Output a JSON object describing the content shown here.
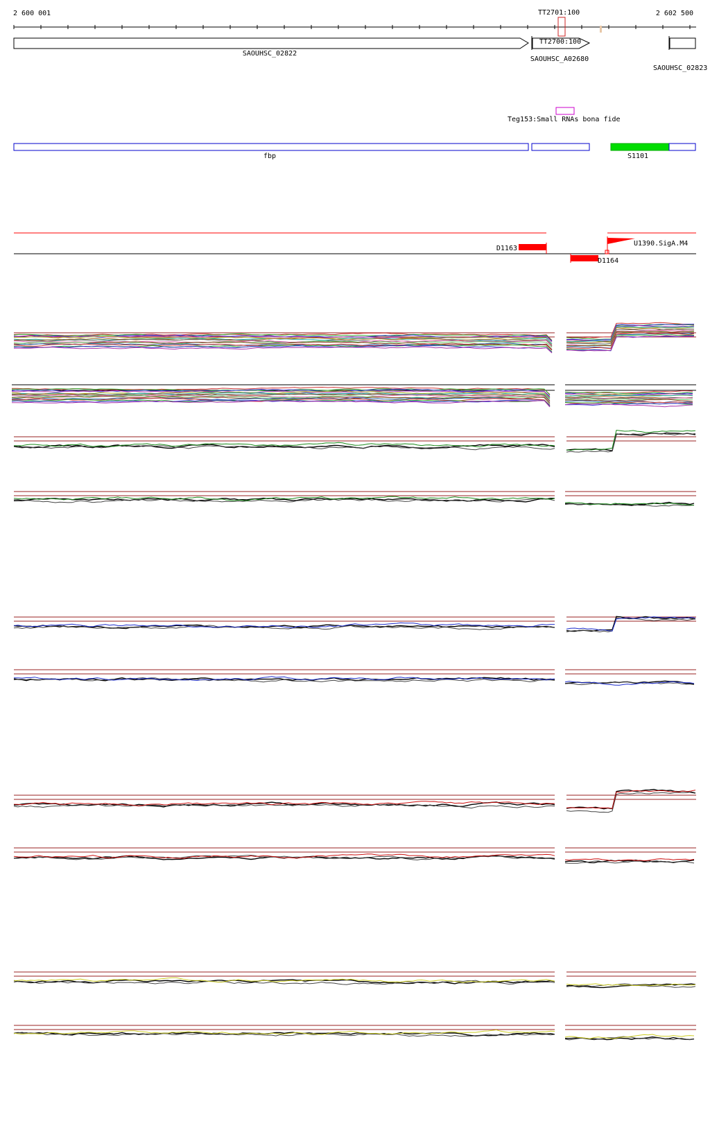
{
  "ruler": {
    "start_label": "2 600 001",
    "end_label": "2 602 500",
    "marker_label": "TT2701:100"
  },
  "genes": {
    "g1": {
      "label": "SAOUHSC_02822"
    },
    "g2": {
      "inner_label": "TT2700:100",
      "label": "SAOUHSC_A02680"
    },
    "g3": {
      "label": "SAOUHSC_02823"
    }
  },
  "srna": {
    "label": "Teg153:Small RNAs bona fide"
  },
  "operons": {
    "fbp": {
      "label": "fbp"
    },
    "s1101": {
      "label": "S1101"
    }
  },
  "promoters": {
    "d1163": {
      "label": "D1163"
    },
    "d1164": {
      "label": "D1164"
    },
    "u1390": {
      "label": "U1390.SigA.M4"
    }
  },
  "colors": {
    "gene_outline": "#000000",
    "operon_outline": "#0000cc",
    "operon_fill_s1101": "#00dd00",
    "promoter": "#ff0000",
    "srna_box": "#cc00cc",
    "threshold": "#992222",
    "track_blue": "#1f2fcc",
    "track_green": "#1a8a1a",
    "track_red": "#cc1111",
    "track_yellow": "#cccc22"
  },
  "tracks": [
    {
      "name": "multi-condition-1",
      "color": "multi"
    },
    {
      "name": "multi-condition-2",
      "color": "multi"
    },
    {
      "name": "green-1",
      "color": "green"
    },
    {
      "name": "green-2",
      "color": "green"
    },
    {
      "name": "blue-1",
      "color": "blue"
    },
    {
      "name": "blue-2",
      "color": "blue"
    },
    {
      "name": "red-1",
      "color": "red"
    },
    {
      "name": "red-2",
      "color": "red"
    },
    {
      "name": "yellow-1",
      "color": "yellow"
    },
    {
      "name": "yellow-2",
      "color": "yellow"
    }
  ]
}
